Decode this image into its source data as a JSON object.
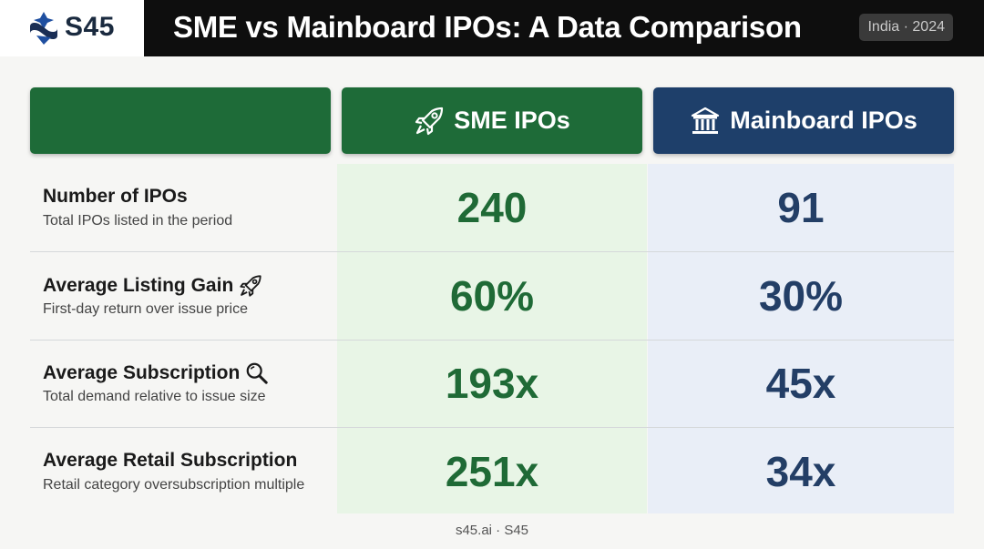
{
  "brand": {
    "name": "S45",
    "logo_icon": "s45-logo-icon"
  },
  "header": {
    "title": "SME vs Mainboard IPOs: A Data Comparison",
    "badge": "India · 2024"
  },
  "columns": {
    "sme": {
      "label": "SME IPOs",
      "icon": "rocket-icon",
      "color": "#1e6b38"
    },
    "mainboard": {
      "label": "Mainboard IPOs",
      "icon": "bank-icon",
      "color": "#1e3f6a"
    }
  },
  "rows": [
    {
      "metric": "Number of IPOs",
      "description": "Total IPOs listed in the period",
      "sme": "240",
      "mainboard": "91"
    },
    {
      "metric": "Average Listing Gain",
      "description": "First-day return over issue price",
      "icon": "rocket-icon",
      "sme": "60%",
      "mainboard": "30%"
    },
    {
      "metric": "Average Subscription",
      "description": "Total demand relative to issue size",
      "icon": "magnifier-icon",
      "sme": "193x",
      "mainboard": "45x"
    },
    {
      "metric": "Average Retail Subscription",
      "description": "Retail category oversubscription multiple",
      "sme": "251x",
      "mainboard": "34x"
    }
  ],
  "footer": "s45.ai · S45"
}
